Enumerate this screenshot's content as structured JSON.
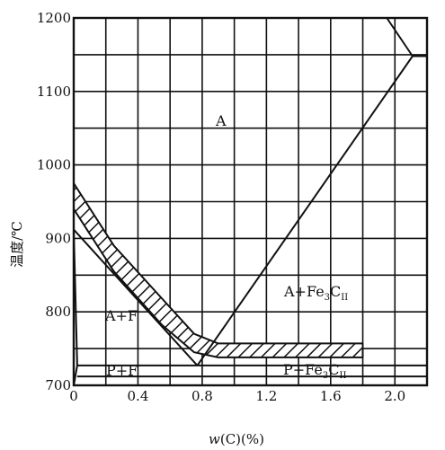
{
  "x_axis": {
    "label_italic": "w",
    "label_rest": "(C)(%)",
    "ticks": [
      "0",
      "0.4",
      "0.8",
      "1.2",
      "1.6",
      "2.0"
    ],
    "tick_values": [
      0,
      0.4,
      0.8,
      1.2,
      1.6,
      2.0
    ],
    "range": [
      0,
      2.2
    ]
  },
  "y_axis": {
    "label": "温度/℃",
    "ticks": [
      "700",
      "800",
      "900",
      "1000",
      "1100",
      "1200"
    ],
    "tick_values": [
      700,
      800,
      900,
      1000,
      1100,
      1200
    ],
    "range": [
      700,
      1200
    ]
  },
  "regions": {
    "a": "A",
    "a_f": "A+F",
    "p_f": "P+F",
    "a_fe3c_main": "A+Fe",
    "a_fe3c_sub1": "3",
    "a_fe3c_mid": "C",
    "a_fe3c_sub2": "II",
    "p_fe3c_main": "P+Fe",
    "p_fe3c_sub1": "3",
    "p_fe3c_mid": "C",
    "p_fe3c_sub2": "II"
  },
  "lines": {
    "A3": [
      [
        0,
        912
      ],
      [
        0.77,
        727
      ]
    ],
    "Acm": [
      [
        0.77,
        727
      ],
      [
        2.11,
        1148
      ]
    ],
    "A1": [
      [
        0.0218,
        727
      ],
      [
        2.2,
        727
      ]
    ],
    "ferrite_solvus": [
      [
        0.0008,
        700
      ],
      [
        0.0218,
        727
      ],
      [
        0,
        912
      ]
    ],
    "top_right": [
      [
        1.95,
        1200
      ],
      [
        2.11,
        1148
      ],
      [
        2.2,
        1148
      ]
    ]
  },
  "hatched_band": {
    "upper": [
      [
        0,
        975
      ],
      [
        0.25,
        890
      ],
      [
        0.55,
        818
      ],
      [
        0.75,
        770
      ],
      [
        0.9,
        757
      ],
      [
        1.1,
        757
      ],
      [
        1.8,
        757
      ]
    ],
    "lower": [
      [
        0,
        940
      ],
      [
        0.25,
        855
      ],
      [
        0.55,
        782
      ],
      [
        0.75,
        745
      ],
      [
        0.9,
        738
      ],
      [
        1.1,
        738
      ],
      [
        1.8,
        738
      ]
    ]
  },
  "extra_horizontal": 712,
  "grid": true
}
